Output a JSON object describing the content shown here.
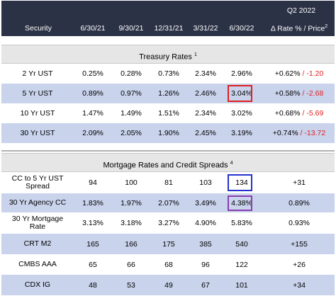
{
  "header": {
    "period_label": "Q2 2022",
    "columns": [
      "Security",
      "6/30/21",
      "9/30/21",
      "12/31/21",
      "3/31/22",
      "6/30/22",
      "Δ Rate % / Price"
    ],
    "last_col_footnote": "2"
  },
  "treasury": {
    "title": "Treasury Rates",
    "footnote": "1",
    "rows": [
      {
        "security": "2 Yr UST",
        "v1": "0.25%",
        "v2": "0.28%",
        "v3": "0.73%",
        "v4": "2.34%",
        "v5": "2.96%",
        "delta_rate": "+0.62%",
        "delta_price": "-1.20"
      },
      {
        "security": "5 Yr UST",
        "v1": "0.89%",
        "v2": "0.97%",
        "v3": "1.26%",
        "v4": "2.46%",
        "v5": "3.04%",
        "delta_rate": "+0.58%",
        "delta_price": "-2.68"
      },
      {
        "security": "10 Yr UST",
        "v1": "1.47%",
        "v2": "1.49%",
        "v3": "1.51%",
        "v4": "2.34%",
        "v5": "3.02%",
        "delta_rate": "+0.68%",
        "delta_price": "-5.69"
      },
      {
        "security": "30 Yr UST",
        "v1": "2.09%",
        "v2": "2.05%",
        "v3": "1.90%",
        "v4": "2.45%",
        "v5": "3.19%",
        "delta_rate": "+0.74%",
        "delta_price": "-13.72"
      }
    ]
  },
  "mortgage": {
    "title": "Mortgage Rates and Credit Spreads",
    "footnote": "4",
    "rows": [
      {
        "security": "CC to 5 Yr UST Spread",
        "v1": "94",
        "v2": "100",
        "v3": "81",
        "v4": "103",
        "v5": "134",
        "delta": "+31"
      },
      {
        "security": "30 Yr Agency CC",
        "v1": "1.83%",
        "v2": "1.97%",
        "v3": "2.07%",
        "v4": "3.49%",
        "v5": "4.38%",
        "delta": "0.89%"
      },
      {
        "security": "30 Yr Mortgage Rate",
        "v1": "3.13%",
        "v2": "3.18%",
        "v3": "3.27%",
        "v4": "4.90%",
        "v5": "5.83%",
        "delta": "0.93%"
      },
      {
        "security": "CRT M2",
        "v1": "165",
        "v2": "166",
        "v3": "175",
        "v4": "385",
        "v5": "540",
        "delta": "+155"
      },
      {
        "security": "CMBS AAA",
        "v1": "65",
        "v2": "66",
        "v3": "68",
        "v4": "96",
        "v5": "122",
        "delta": "+26"
      },
      {
        "security": "CDX IG",
        "v1": "48",
        "v2": "53",
        "v3": "49",
        "v4": "67",
        "v5": "101",
        "delta": "+34"
      }
    ]
  },
  "colors": {
    "header_bg": "#2b3245",
    "shaded_row": "#c9d3ec",
    "negative": "#e02020",
    "highlight_red": "#e02020",
    "highlight_blue": "#2233cc",
    "highlight_purple": "#8a3fb0"
  }
}
